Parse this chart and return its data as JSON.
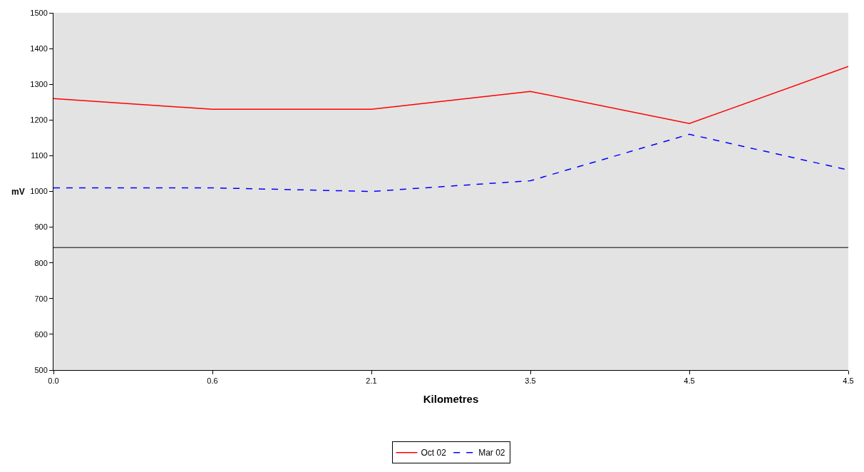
{
  "chart_data": {
    "type": "line",
    "xlabel": "Kilometres",
    "ylabel": "mV",
    "categories": [
      "0.0",
      "0.6",
      "2.1",
      "3.5",
      "4.5",
      "4.5"
    ],
    "series": [
      {
        "name": "Oct 02",
        "color": "#ff0000",
        "line_style": "solid",
        "values": [
          1260,
          1230,
          1230,
          1280,
          1190,
          1350
        ]
      },
      {
        "name": "Mar 02",
        "color": "#0000ff",
        "line_style": "dashed",
        "values": [
          1010,
          1010,
          1000,
          1030,
          1160,
          1060
        ]
      }
    ],
    "ylim": [
      500,
      1500
    ],
    "yticks": [
      500,
      600,
      700,
      800,
      900,
      1000,
      1100,
      1200,
      1300,
      1400,
      1500
    ],
    "ref_lines": [
      {
        "axis": "y",
        "value": 843,
        "color": "#000000"
      }
    ],
    "grid": false,
    "legend": "bottom",
    "marker": "none"
  }
}
